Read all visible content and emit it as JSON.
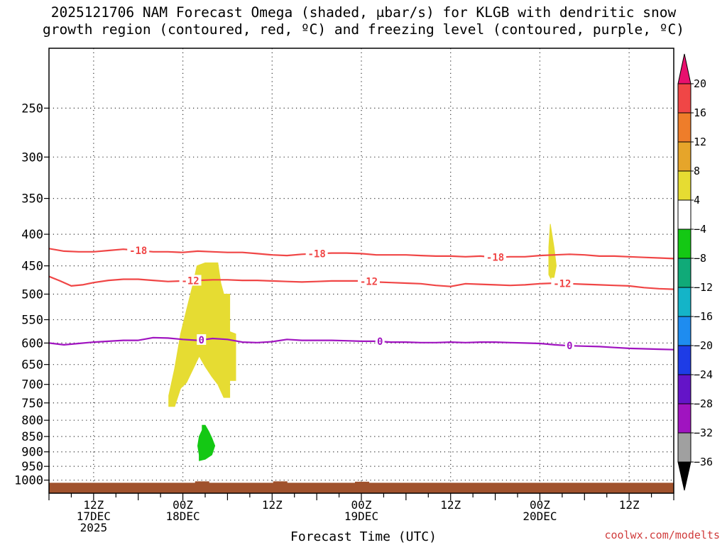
{
  "title_line1": "2025121706 NAM Forecast Omega (shaded, μbar/s) for KLGB with dendritic snow",
  "title_line2": "growth region (contoured, red, ºC) and freezing level (contoured, purple, ºC)",
  "credit": "coolwx.com/modelts",
  "chart_data": {
    "type": "heatmap",
    "title": "2025121706 NAM Forecast Omega (shaded, μbar/s) for KLGB with dendritic snow growth region (contoured, red, ºC) and freezing level (contoured, purple, ºC)",
    "xlabel": "Forecast Time (UTC)",
    "ylabel": "",
    "x_units": "hours from 2025-12-17 06Z",
    "xlim": [
      0,
      84
    ],
    "y_scale": "log-pressure",
    "ylim": [
      1050,
      200
    ],
    "y_ticks": [
      250,
      300,
      350,
      400,
      450,
      500,
      550,
      600,
      650,
      700,
      750,
      800,
      850,
      900,
      950,
      1000
    ],
    "grid": true,
    "x_ticks": [
      {
        "hour": 6,
        "label": [
          "12Z",
          "17DEC",
          "2025"
        ]
      },
      {
        "hour": 18,
        "label": [
          "00Z",
          "18DEC"
        ]
      },
      {
        "hour": 30,
        "label": [
          "12Z"
        ]
      },
      {
        "hour": 42,
        "label": [
          "00Z",
          "19DEC"
        ]
      },
      {
        "hour": 54,
        "label": [
          "12Z"
        ]
      },
      {
        "hour": 66,
        "label": [
          "00Z",
          "20DEC"
        ]
      },
      {
        "hour": 78,
        "label": [
          "12Z"
        ]
      }
    ],
    "colorbar": {
      "unit": "μbar/s",
      "labels": [
        "20",
        "16",
        "12",
        "8",
        "4",
        "−4",
        "−8",
        "−12",
        "−16",
        "−20",
        "−24",
        "−28",
        "−32",
        "−36"
      ],
      "levels": [
        20,
        16,
        12,
        8,
        4,
        -4,
        -8,
        -12,
        -16,
        -20,
        -24,
        -28,
        -32,
        -36
      ],
      "top_color": "#e8106e",
      "bands": [
        {
          "from": 20,
          "to": 16,
          "color": "#f04646"
        },
        {
          "from": 16,
          "to": 12,
          "color": "#ee7d2a"
        },
        {
          "from": 12,
          "to": 8,
          "color": "#e6a52a"
        },
        {
          "from": 8,
          "to": 4,
          "color": "#e6dc32"
        },
        {
          "from": 4,
          "to": -4,
          "color": "#ffffff"
        },
        {
          "from": -4,
          "to": -8,
          "color": "#14c814"
        },
        {
          "from": -8,
          "to": -12,
          "color": "#10aa78"
        },
        {
          "from": -12,
          "to": -16,
          "color": "#14b4c8"
        },
        {
          "from": -16,
          "to": -20,
          "color": "#1e8cf0"
        },
        {
          "from": -20,
          "to": -24,
          "color": "#1e3ce6"
        },
        {
          "from": -24,
          "to": -28,
          "color": "#6414c8"
        },
        {
          "from": -28,
          "to": -32,
          "color": "#a014c0"
        },
        {
          "from": -32,
          "to": -36,
          "color": "#a0a0a0"
        }
      ],
      "bottom_color": "#000000"
    },
    "shaded_regions": [
      {
        "name": "omega 4 to 8 (18DEC)",
        "value_range": [
          4,
          8
        ],
        "color": "#e6dc32",
        "polygon": [
          [
            16.1,
            760
          ],
          [
            16.9,
            760
          ],
          [
            17.7,
            710
          ],
          [
            18.5,
            695
          ],
          [
            19.4,
            660
          ],
          [
            20.2,
            630
          ],
          [
            21.0,
            655
          ],
          [
            21.9,
            680
          ],
          [
            22.7,
            700
          ],
          [
            23.5,
            735
          ],
          [
            24.3,
            735
          ],
          [
            24.3,
            690
          ],
          [
            25.1,
            690
          ],
          [
            25.1,
            580
          ],
          [
            24.3,
            575
          ],
          [
            24.3,
            500
          ],
          [
            23.5,
            500
          ],
          [
            23.1,
            480
          ],
          [
            22.7,
            445
          ],
          [
            21.0,
            445
          ],
          [
            19.9,
            450
          ],
          [
            19.4,
            480
          ],
          [
            18.5,
            530
          ],
          [
            17.7,
            580
          ],
          [
            16.9,
            660
          ],
          [
            16.1,
            730
          ]
        ]
      },
      {
        "name": "omega -4 to -8 (18DEC)",
        "value_range": [
          -8,
          -4
        ],
        "color": "#14c814",
        "polygon": [
          [
            20.2,
            930
          ],
          [
            21.0,
            925
          ],
          [
            21.9,
            910
          ],
          [
            22.3,
            880
          ],
          [
            21.9,
            855
          ],
          [
            21.5,
            835
          ],
          [
            21.0,
            815
          ],
          [
            20.6,
            815
          ],
          [
            20.6,
            830
          ],
          [
            20.2,
            850
          ],
          [
            20.0,
            880
          ],
          [
            20.2,
            910
          ]
        ]
      },
      {
        "name": "omega 4 to 8 (20DEC)",
        "value_range": [
          4,
          8
        ],
        "color": "#e6dc32",
        "polygon": [
          [
            67.4,
            385
          ],
          [
            67.9,
            420
          ],
          [
            68.2,
            450
          ],
          [
            67.9,
            470
          ],
          [
            67.6,
            475
          ],
          [
            67.2,
            465
          ],
          [
            67.2,
            420
          ]
        ]
      }
    ],
    "contours": [
      {
        "name": "-18",
        "label": "-18",
        "color": "#f04646",
        "style": "solid",
        "x": [
          0,
          2,
          4,
          6,
          8,
          10,
          12,
          14,
          16,
          18,
          20,
          22,
          24,
          26,
          28,
          30,
          32,
          34,
          36,
          38,
          40,
          42,
          44,
          46,
          48,
          50,
          52,
          54,
          56,
          58,
          60,
          62,
          64,
          66,
          68,
          70,
          72,
          74,
          76,
          78,
          80,
          82,
          84
        ],
        "y": [
          422,
          426,
          427,
          427,
          425,
          423,
          425,
          427,
          427,
          428,
          426,
          427,
          428,
          428,
          430,
          432,
          433,
          431,
          430,
          429,
          429,
          430,
          432,
          432,
          432,
          433,
          434,
          434,
          435,
          434,
          436,
          435,
          435,
          433,
          432,
          431,
          432,
          434,
          434,
          435,
          436,
          437,
          438
        ],
        "label_x": [
          12,
          36,
          60
        ]
      },
      {
        "name": "-12",
        "label": "-12",
        "color": "#f04646",
        "style": "solid",
        "x": [
          0,
          1.5,
          3,
          4.5,
          6,
          8,
          10,
          12,
          14,
          16,
          18,
          20,
          22,
          24,
          26,
          28,
          30,
          32,
          34,
          36,
          38,
          40,
          42,
          44,
          46,
          48,
          50,
          52,
          54,
          56,
          58,
          60,
          62,
          64,
          66,
          68,
          70,
          72,
          74,
          76,
          78,
          80,
          82,
          84
        ],
        "y": [
          468,
          476,
          485,
          483,
          479,
          475,
          473,
          473,
          475,
          477,
          476,
          475,
          474,
          474,
          475,
          475,
          476,
          477,
          478,
          477,
          476,
          476,
          476,
          478,
          479,
          480,
          481,
          484,
          486,
          481,
          482,
          483,
          484,
          483,
          481,
          480,
          481,
          482,
          483,
          484,
          485,
          488,
          490,
          491
        ],
        "label_x": [
          19,
          43,
          69
        ]
      },
      {
        "name": "0",
        "label": "0",
        "color": "#a014c0",
        "style": "solid",
        "x": [
          0,
          2,
          4,
          6,
          8,
          10,
          12,
          14,
          16,
          18,
          20,
          22,
          24,
          26,
          28,
          30,
          32,
          34,
          36,
          38,
          40,
          42,
          44,
          46,
          48,
          50,
          52,
          54,
          56,
          58,
          60,
          62,
          64,
          66,
          68,
          70,
          72,
          74,
          76,
          78,
          80,
          82,
          84
        ],
        "y": [
          600,
          604,
          601,
          598,
          596,
          594,
          594,
          588,
          589,
          592,
          594,
          590,
          592,
          598,
          599,
          597,
          592,
          594,
          594,
          594,
          595,
          596,
          596,
          598,
          598,
          599,
          599,
          598,
          599,
          598,
          598,
          599,
          600,
          601,
          604,
          606,
          607,
          608,
          610,
          612,
          613,
          614,
          615
        ],
        "label_x": [
          20.5,
          44.5,
          70
        ]
      }
    ],
    "surface": {
      "name": "terrain",
      "color": "#a0522d",
      "y_top": 1010
    }
  }
}
